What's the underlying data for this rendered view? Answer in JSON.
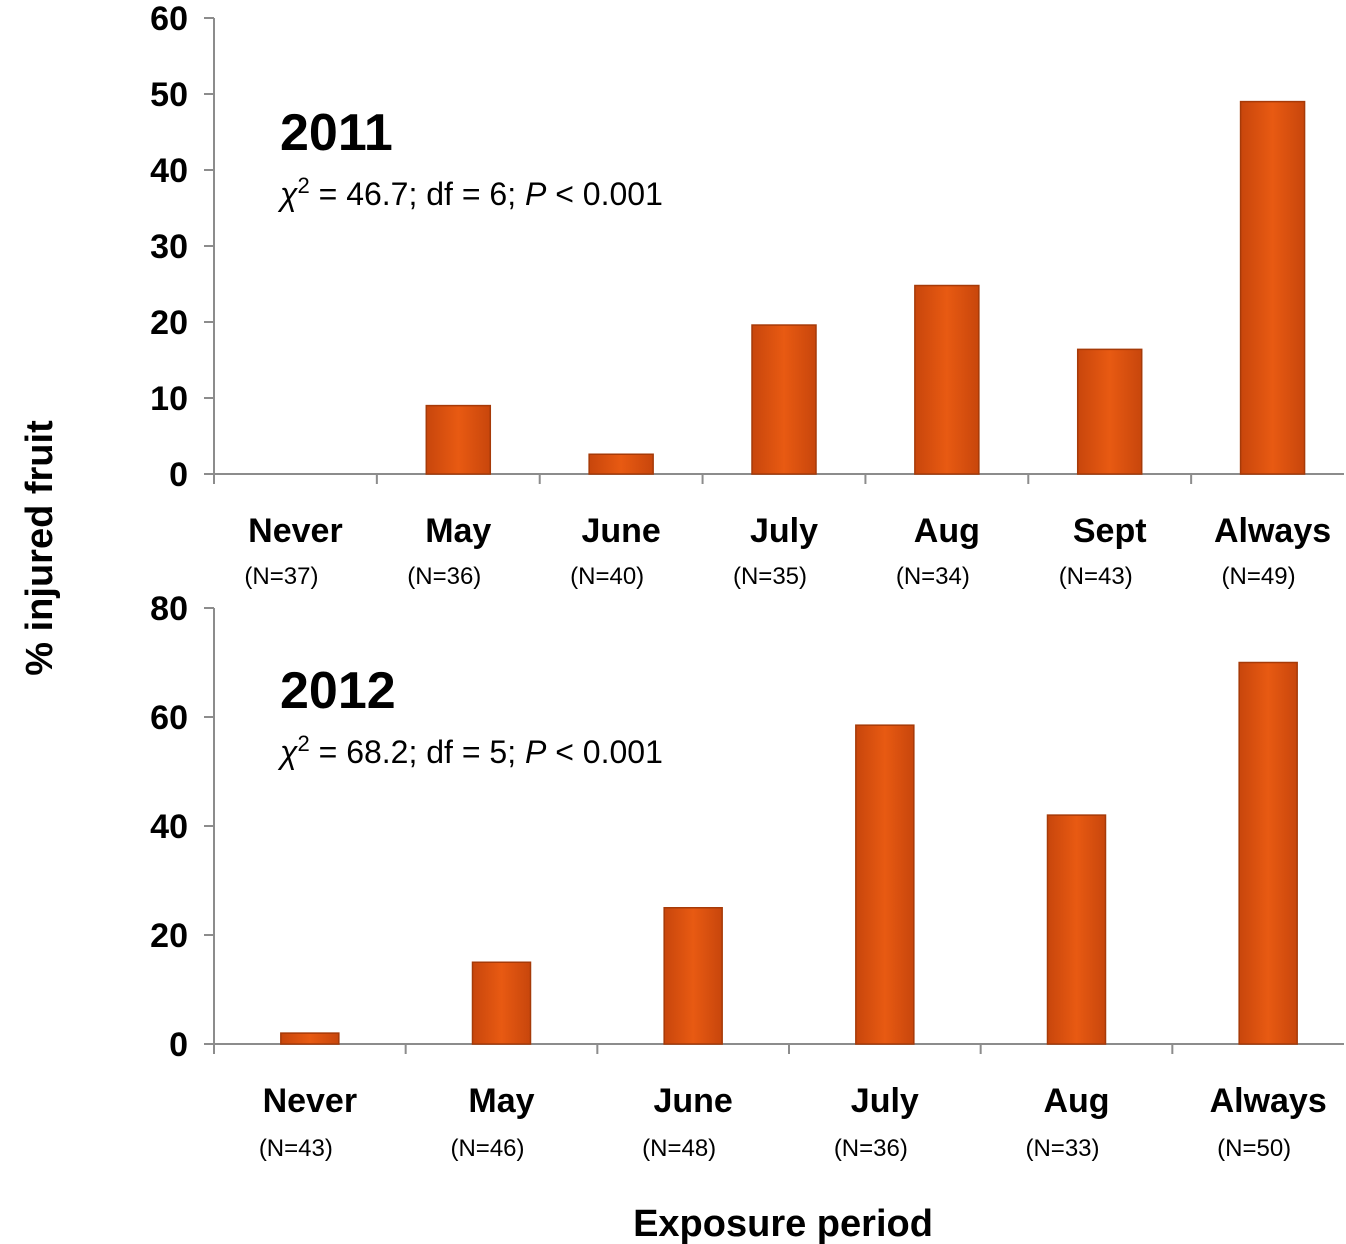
{
  "chart_data": [
    {
      "type": "bar",
      "year": "2011",
      "stat_text": {
        "chi": "χ",
        "sup": "2",
        "mid": " = 46.7; df = 6;  ",
        "p": "P",
        "end": " < 0.001"
      },
      "categories": [
        "Never",
        "May",
        "June",
        "July",
        "Aug",
        "Sept",
        "Always"
      ],
      "n_labels": [
        "(N=37)",
        "(N=36)",
        "(N=40)",
        "(N=35)",
        "(N=34)",
        "(N=43)",
        "(N=49)"
      ],
      "values": [
        0,
        9,
        2.6,
        19.6,
        24.8,
        16.4,
        49
      ],
      "ylim": [
        0,
        60
      ],
      "yticks": [
        0,
        10,
        20,
        30,
        40,
        50,
        60
      ],
      "grid": false
    },
    {
      "type": "bar",
      "year": "2012",
      "stat_text": {
        "chi": "χ",
        "sup": "2",
        "mid": " = 68.2; df = 5;  ",
        "p": "P",
        "end": " < 0.001"
      },
      "categories": [
        "Never",
        "May",
        "June",
        "July",
        "Aug",
        "Always"
      ],
      "n_labels": [
        "(N=43)",
        "(N=46)",
        "(N=48)",
        "(N=36)",
        "(N=33)",
        "(N=50)"
      ],
      "values": [
        2,
        15,
        25,
        58.5,
        42,
        70
      ],
      "ylim": [
        0,
        80
      ],
      "yticks": [
        0,
        20,
        40,
        60,
        80
      ],
      "grid": false
    }
  ],
  "ylabel": "% injured fruit",
  "xlabel": "Exposure period",
  "colors": {
    "bar_fill": "#e05411",
    "bar_stroke": "#a63a08",
    "axis": "#8c8c8c"
  }
}
